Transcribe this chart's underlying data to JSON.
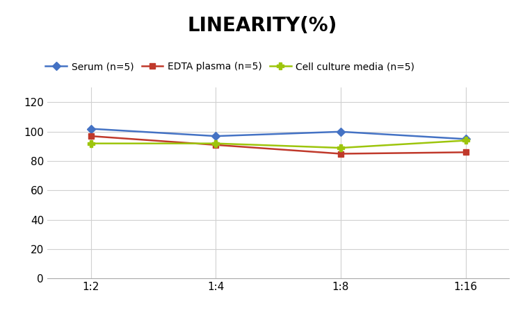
{
  "title": "LINEARITY(%)",
  "title_fontsize": 20,
  "title_fontweight": "bold",
  "x_labels": [
    "1:2",
    "1:4",
    "1:8",
    "1:16"
  ],
  "x_positions": [
    0,
    1,
    2,
    3
  ],
  "series": [
    {
      "label": "Serum (n=5)",
      "values": [
        102,
        97,
        100,
        95
      ],
      "color": "#4472C4",
      "marker": "D",
      "markersize": 6,
      "linewidth": 1.8
    },
    {
      "label": "EDTA plasma (n=5)",
      "values": [
        97,
        91,
        85,
        86
      ],
      "color": "#C0392B",
      "marker": "s",
      "markersize": 6,
      "linewidth": 1.8
    },
    {
      "label": "Cell culture media (n=5)",
      "values": [
        92,
        92,
        89,
        94
      ],
      "color": "#9DC50C",
      "marker": "P",
      "markersize": 7,
      "linewidth": 1.8
    }
  ],
  "ylim": [
    0,
    130
  ],
  "yticks": [
    0,
    20,
    40,
    60,
    80,
    100,
    120
  ],
  "grid_color": "#D0D0D0",
  "grid_linewidth": 0.8,
  "background_color": "#FFFFFF",
  "legend_fontsize": 10,
  "tick_fontsize": 11,
  "xlim": [
    -0.35,
    3.35
  ]
}
